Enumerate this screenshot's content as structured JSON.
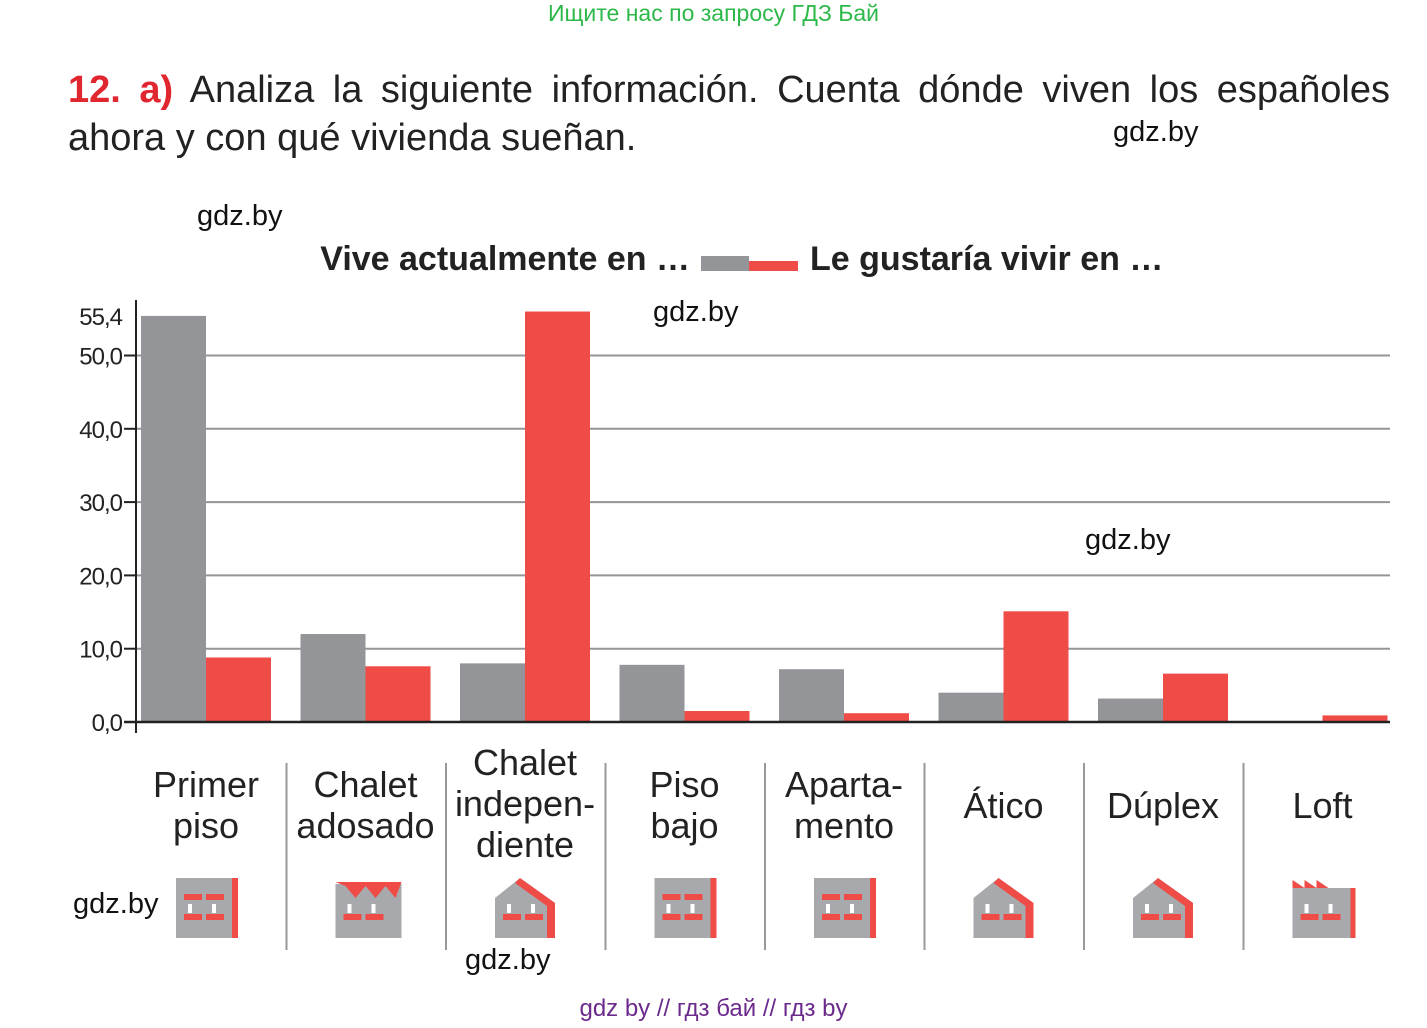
{
  "banner": "Ищите нас по запросу ГДЗ Бай",
  "exercise": {
    "number": "12.",
    "part": "a)",
    "text": "Analiza la siguiente información. Cuenta dónde viven los españoles ahora y con qué vivienda sueñan."
  },
  "watermarks": [
    "gdz.by",
    "gdz.by",
    "gdz.by",
    "gdz.by",
    "gdz.by",
    "gdz.by"
  ],
  "footer": "gdz by  //  гдз бай  //  гдз by",
  "colors": {
    "current": "#939598",
    "desired": "#ef4b47",
    "grid": "#939598",
    "axis": "#222222"
  },
  "chart_data": {
    "type": "bar",
    "title": "",
    "xlabel": "",
    "ylabel": "",
    "ylim": [
      0,
      56
    ],
    "yticks": [
      "0,0",
      "10,0",
      "20,0",
      "30,0",
      "40,0",
      "50,0",
      "55,4"
    ],
    "ytick_values": [
      0,
      10,
      20,
      30,
      40,
      50,
      55.4
    ],
    "grid": true,
    "legend_placement": "top",
    "categories": [
      [
        "Primer",
        "piso"
      ],
      [
        "Chalet",
        "adosado"
      ],
      [
        "Chalet",
        "indepen-",
        "diente"
      ],
      [
        "Piso",
        "bajo"
      ],
      [
        "Aparta-",
        "mento"
      ],
      [
        "Ático"
      ],
      [
        "Dúplex"
      ],
      [
        "Loft"
      ]
    ],
    "icons": [
      "apartment-block-icon",
      "terraced-house-icon",
      "detached-house-icon",
      "ground-floor-flat-icon",
      "apartment-icon",
      "attic-house-icon",
      "duplex-house-icon",
      "loft-factory-icon"
    ],
    "series": [
      {
        "name": "Vive actualmente en …",
        "values": [
          55.4,
          12.0,
          8.0,
          7.8,
          7.2,
          4.0,
          3.2,
          0.1
        ]
      },
      {
        "name": "Le gustaría vivir en …",
        "values": [
          8.8,
          7.6,
          56.0,
          1.5,
          1.2,
          15.1,
          6.6,
          0.9
        ]
      }
    ]
  }
}
